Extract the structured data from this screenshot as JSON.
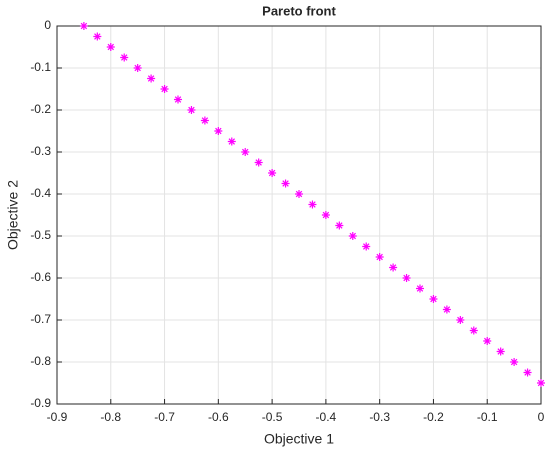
{
  "chart_data": {
    "type": "scatter",
    "title": "Pareto front",
    "x_label": "Objective 1",
    "y_label": "Objective 2",
    "x": [
      -0.85,
      -0.825,
      -0.8,
      -0.775,
      -0.75,
      -0.725,
      -0.7,
      -0.675,
      -0.65,
      -0.625,
      -0.6,
      -0.575,
      -0.55,
      -0.525,
      -0.5,
      -0.475,
      -0.45,
      -0.425,
      -0.4,
      -0.375,
      -0.35,
      -0.325,
      -0.3,
      -0.275,
      -0.25,
      -0.225,
      -0.2,
      -0.175,
      -0.15,
      -0.125,
      -0.1,
      -0.075,
      -0.05,
      -0.025,
      0
    ],
    "values": [
      0,
      -0.025,
      -0.05,
      -0.075,
      -0.1,
      -0.125,
      -0.15,
      -0.175,
      -0.2,
      -0.225,
      -0.25,
      -0.275,
      -0.3,
      -0.325,
      -0.35,
      -0.375,
      -0.4,
      -0.425,
      -0.45,
      -0.475,
      -0.5,
      -0.525,
      -0.55,
      -0.575,
      -0.6,
      -0.625,
      -0.65,
      -0.675,
      -0.7,
      -0.725,
      -0.75,
      -0.775,
      -0.8,
      -0.825,
      -0.85
    ],
    "color": "#ff00ff",
    "xlim": [
      -0.9,
      0
    ],
    "xticks": [
      -0.9,
      -0.8,
      -0.7,
      -0.6,
      -0.5,
      -0.4,
      -0.3,
      -0.2,
      -0.1,
      0
    ],
    "ylim": [
      -0.9,
      0
    ],
    "yticks": [
      -0.9,
      -0.8,
      -0.7,
      -0.6,
      -0.5,
      -0.4,
      -0.3,
      -0.2,
      -0.1,
      0
    ],
    "grid": true
  }
}
